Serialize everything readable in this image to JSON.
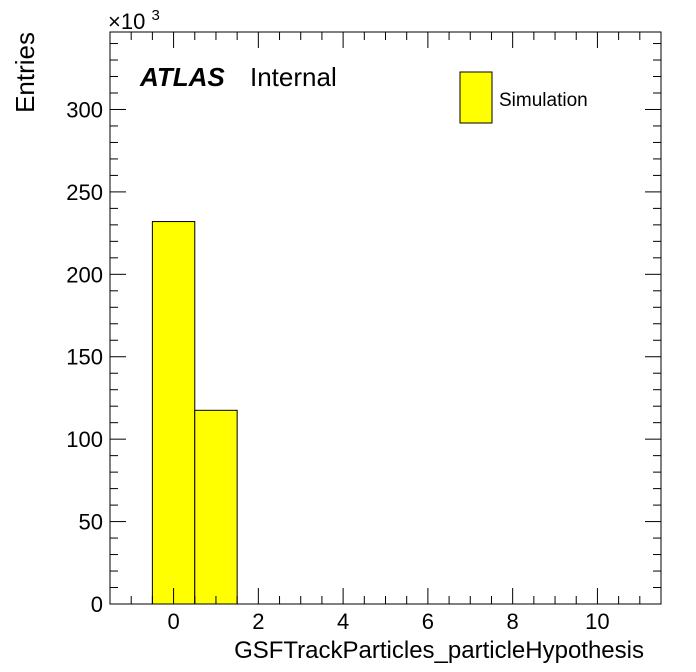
{
  "chart_data": {
    "type": "bar",
    "histogram": true,
    "x_label": "GSFTrackParticles_particleHypothesis",
    "y_label": "Entries",
    "y_multiplier_base": "×10",
    "y_multiplier_exponent": "3",
    "xlim": [
      -1.5,
      11.5
    ],
    "ylim": [
      0,
      347
    ],
    "x_ticks": [
      0,
      2,
      4,
      6,
      8,
      10
    ],
    "y_ticks": [
      0,
      50,
      100,
      150,
      200,
      250,
      300
    ],
    "bins": [
      {
        "x_low": -0.5,
        "x_high": 0.5,
        "value": 232
      },
      {
        "x_low": 0.5,
        "x_high": 1.5,
        "value": 117.5
      }
    ],
    "series": [
      {
        "name": "Simulation",
        "color": "#ffff00"
      }
    ],
    "legend_position": "top-right",
    "atlas_label": "ATLAS",
    "atlas_sublabel": "Internal",
    "grid": false
  }
}
